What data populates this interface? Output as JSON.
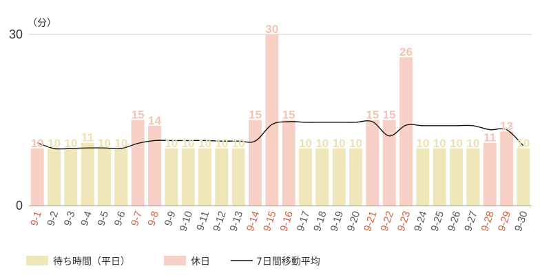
{
  "chart_data": {
    "type": "bar",
    "y_unit": "（分）",
    "ylim": [
      0,
      30
    ],
    "y_ticks": [
      "0",
      "30"
    ],
    "grid": true,
    "legend_position": "bottom",
    "categories": [
      "9-1",
      "9-2",
      "9-3",
      "9-4",
      "9-5",
      "9-6",
      "9-7",
      "9-8",
      "9-9",
      "9-10",
      "9-11",
      "9-12",
      "9-13",
      "9-14",
      "9-15",
      "9-16",
      "9-17",
      "9-18",
      "9-19",
      "9-20",
      "9-21",
      "9-22",
      "9-23",
      "9-24",
      "9-25",
      "9-26",
      "9-27",
      "9-28",
      "9-29",
      "9-30"
    ],
    "values": [
      10,
      10,
      10,
      11,
      10,
      10,
      15,
      14,
      10,
      10,
      10,
      10,
      10,
      15,
      30,
      15,
      10,
      10,
      10,
      10,
      15,
      15,
      26,
      10,
      10,
      10,
      10,
      11,
      13,
      10
    ],
    "holiday": [
      true,
      false,
      false,
      false,
      false,
      false,
      true,
      true,
      false,
      false,
      false,
      false,
      false,
      true,
      true,
      true,
      false,
      false,
      false,
      false,
      true,
      true,
      true,
      false,
      false,
      false,
      false,
      true,
      true,
      false
    ],
    "moving_average": [
      11.0,
      10.0,
      10.0,
      10.1,
      10.1,
      10.0,
      10.9,
      11.4,
      11.4,
      11.4,
      11.4,
      11.3,
      11.3,
      11.3,
      14.2,
      14.7,
      14.6,
      14.6,
      14.6,
      14.6,
      14.7,
      12.2,
      14.1,
      14.0,
      14.0,
      14.0,
      14.0,
      13.3,
      13.3,
      10.5
    ],
    "legend": [
      {
        "key": "weekday",
        "label": "待ち時間（平日）"
      },
      {
        "key": "holiday",
        "label": "休日"
      },
      {
        "key": "ma",
        "label": "7日間移動平均"
      }
    ],
    "colors": {
      "weekday": "#efe6b9",
      "holiday": "#f7d1c6",
      "weekday_label": "#ece1b0",
      "holiday_label": "#f4c3b2",
      "x_weekday": "#555555",
      "x_holiday": "#d65f40",
      "ma_line": "#111111",
      "grid": "#cccccc",
      "axis": "#999999"
    }
  }
}
